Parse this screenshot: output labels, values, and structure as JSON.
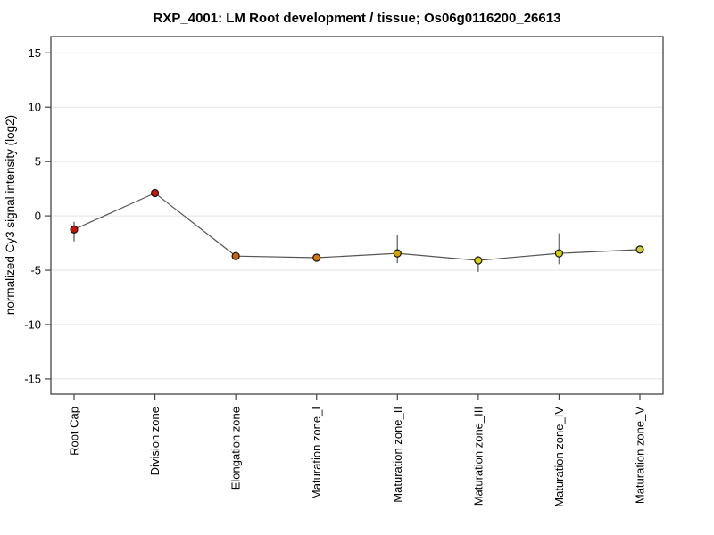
{
  "title": "RXP_4001: LM Root development / tissue; Os06g0116200_26613",
  "style": {
    "background": "#ffffff",
    "grid_color": "#e3e3e3",
    "frame_color": "#444444",
    "tick_color": "#444444",
    "text_color": "#000000",
    "error_bar_color": "#777777"
  },
  "chart_data": {
    "type": "line",
    "title": "RXP_4001: LM Root development / tissue; Os06g0116200_26613",
    "xlabel": "",
    "ylabel": "normalized Cy3 signal intensity (log2)",
    "ylim": [
      -16.4,
      16.5
    ],
    "yticks": [
      15,
      10,
      5,
      0,
      -5,
      -10,
      -15
    ],
    "grid": true,
    "legend": "none",
    "categories": [
      "Root Cap",
      "Division zone",
      "Elongation zone",
      "Maturation zone_I",
      "Maturation zone_II",
      "Maturation zone_III",
      "Maturation zone_IV",
      "Maturation zone_V"
    ],
    "series": [
      {
        "name": "normalized Cy3 signal intensity (log2)",
        "values": [
          -1.25,
          2.1,
          -3.7,
          -3.85,
          -3.45,
          -4.1,
          -3.45,
          -3.1
        ],
        "error_low": [
          -2.35,
          1.85,
          -3.95,
          -4.05,
          -4.35,
          -5.15,
          -4.45,
          -3.4
        ],
        "error_high": [
          -0.55,
          2.4,
          -3.45,
          -3.65,
          -1.8,
          -3.7,
          -1.6,
          -2.8
        ],
        "point_colors": [
          "#cc1400",
          "#d41400",
          "#cc6200",
          "#d47600",
          "#d4a200",
          "#d6d400",
          "#d6d400",
          "#cccc3c"
        ],
        "line_color": "#555555",
        "marker_outline": "#111111"
      }
    ]
  }
}
